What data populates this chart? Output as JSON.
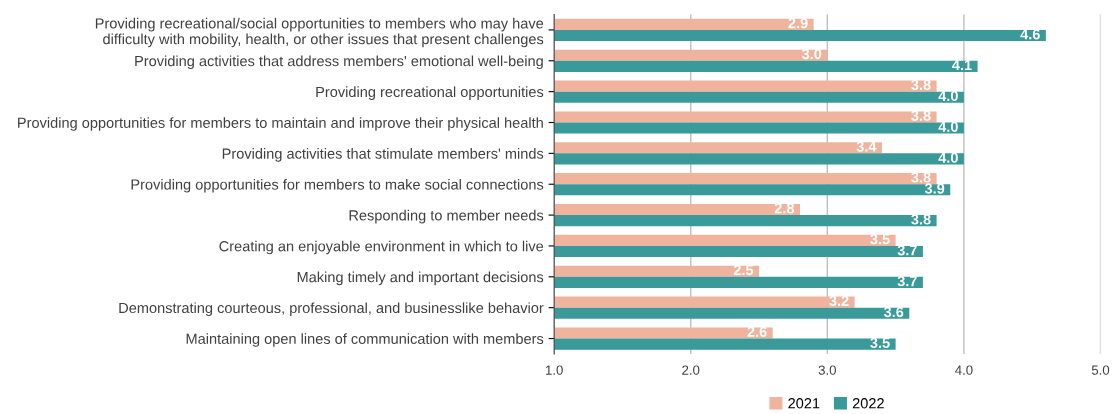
{
  "chart_data": {
    "type": "bar",
    "orientation": "horizontal",
    "categories": [
      "Providing recreational/social opportunities to members who may have\ndifficulty with mobility, health, or other issues that present challenges",
      "Providing activities that address members' emotional well-being",
      "Providing recreational opportunities",
      "Providing opportunities for members to maintain and improve their physical health",
      "Providing activities that stimulate members' minds",
      "Providing opportunities for members to make social connections",
      "Responding to member needs",
      "Creating an enjoyable environment in which to live",
      "Making timely and important decisions",
      "Demonstrating courteous, professional, and businesslike behavior",
      "Maintaining open lines of communication with members"
    ],
    "series": [
      {
        "name": "2021",
        "color": "#f0b49e",
        "values": [
          2.9,
          3.0,
          3.8,
          3.8,
          3.4,
          3.8,
          2.8,
          3.5,
          2.5,
          3.2,
          2.6
        ],
        "value_labels": [
          "2.9",
          "3.0",
          "3.8",
          "3.8",
          "3.4",
          "3.8",
          "2.8",
          "3.5",
          "2.5",
          "3.2",
          "2.6"
        ]
      },
      {
        "name": "2022",
        "color": "#3a9a9a",
        "values": [
          4.6,
          4.1,
          4.0,
          4.0,
          4.0,
          3.9,
          3.8,
          3.7,
          3.7,
          3.6,
          3.5
        ],
        "value_labels": [
          "4.6",
          "4.1",
          "4.0",
          "4.0",
          "4.0",
          "3.9",
          "3.8",
          "3.7",
          "3.7",
          "3.6",
          "3.5"
        ]
      }
    ],
    "xlim": [
      1,
      5
    ],
    "xticks": [
      {
        "value": 1,
        "label": "1.0"
      },
      {
        "value": 2,
        "label": "2.0"
      },
      {
        "value": 3,
        "label": "3.0"
      },
      {
        "value": 4,
        "label": "4.0"
      },
      {
        "value": 5,
        "label": "5.0"
      }
    ],
    "grid": "x",
    "legend": "bottom"
  }
}
